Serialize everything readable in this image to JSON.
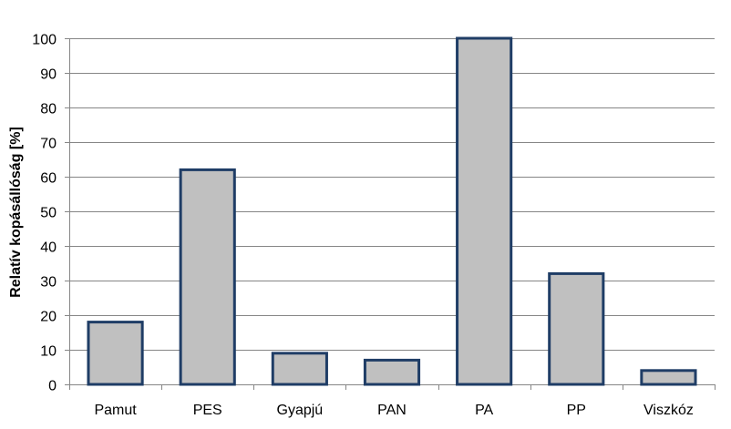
{
  "chart_data": {
    "type": "bar",
    "title": "",
    "xlabel": "",
    "ylabel": "Relatív kopásállóság [%]",
    "categories": [
      "Pamut",
      "PES",
      "Gyapjú",
      "PAN",
      "PA",
      "PP",
      "Viszkóz"
    ],
    "values": [
      18,
      62,
      9,
      7,
      100,
      32,
      4
    ],
    "ylim": [
      0,
      100
    ],
    "yticks": [
      0,
      10,
      20,
      30,
      40,
      50,
      60,
      70,
      80,
      90,
      100
    ],
    "grid": true,
    "legend": "none",
    "colors": {
      "bar_fill": "#c0c0c0",
      "bar_stroke": "#1f3d66",
      "grid": "#868686",
      "axis": "#868686"
    }
  }
}
